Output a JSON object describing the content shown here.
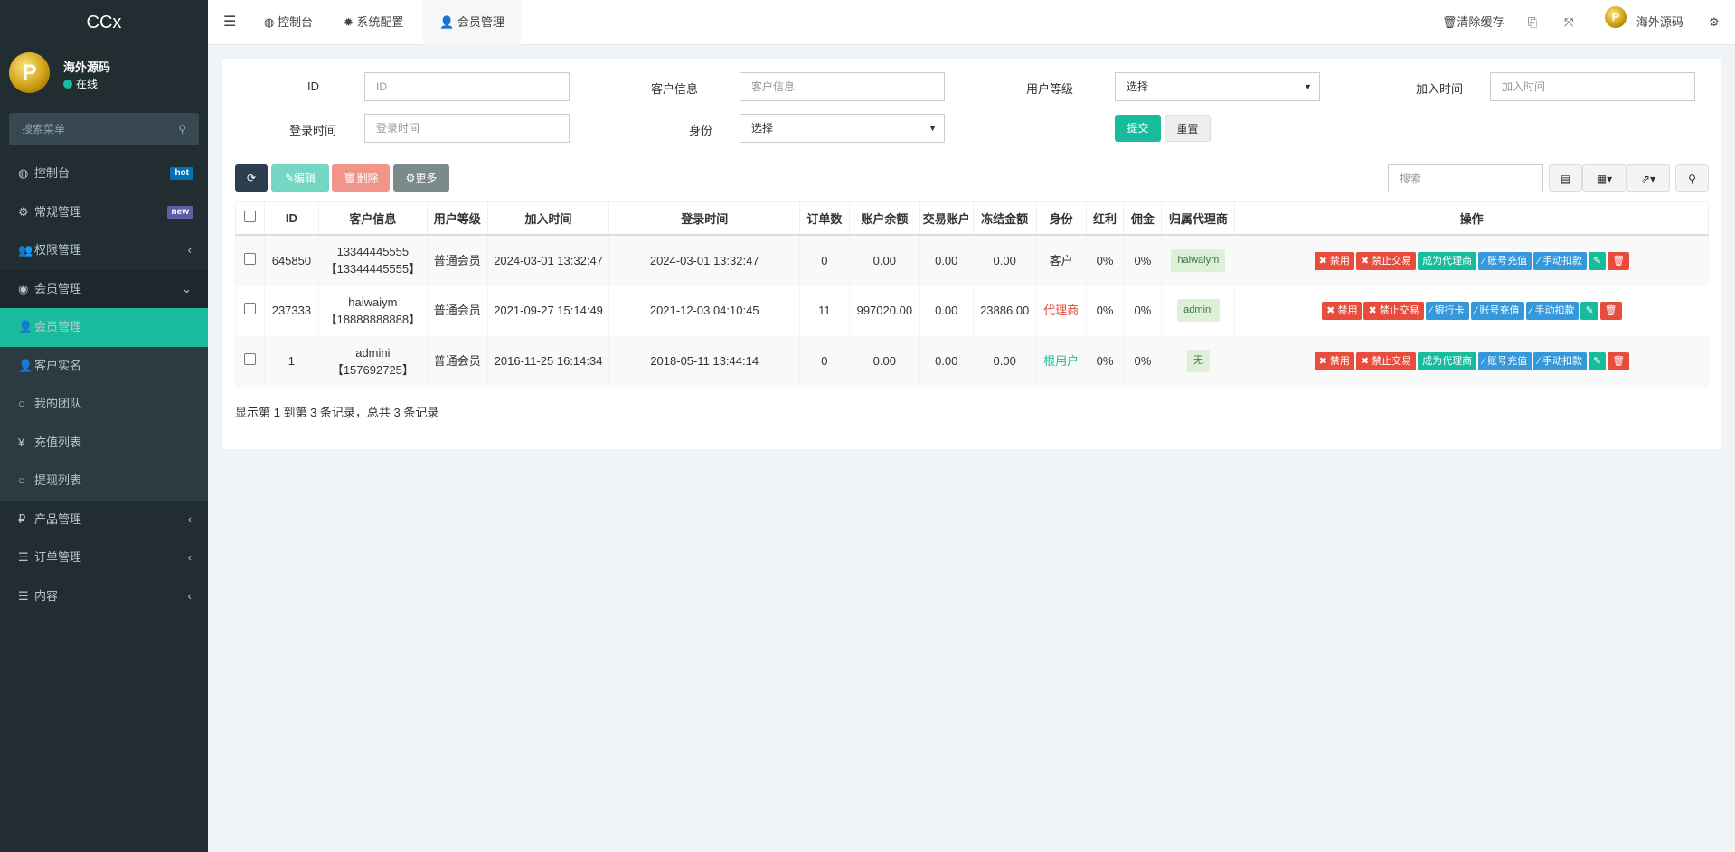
{
  "app": {
    "title": "CCx"
  },
  "user": {
    "name": "海外源码",
    "status": "在线",
    "avatar_letter": "P"
  },
  "sidebar": {
    "search_placeholder": "搜索菜单",
    "items": [
      {
        "label": "控制台",
        "icon": "dashboard-icon",
        "badge": "hot",
        "badge_color": "#0073b7"
      },
      {
        "label": "常规管理",
        "icon": "cogs-icon",
        "badge": "new",
        "badge_color": "#605ca8"
      },
      {
        "label": "权限管理",
        "icon": "group-icon"
      },
      {
        "label": "会员管理",
        "icon": "user-circle-icon",
        "open": true
      },
      {
        "label": "会员管理",
        "icon": "user-icon",
        "active": true
      },
      {
        "label": "客户实名",
        "icon": "user-icon"
      },
      {
        "label": "我的团队",
        "icon": "circle-icon"
      },
      {
        "label": "充值列表",
        "icon": "yen-icon"
      },
      {
        "label": "提现列表",
        "icon": "circle-icon"
      },
      {
        "label": "产品管理",
        "icon": "ruble-icon"
      },
      {
        "label": "订单管理",
        "icon": "list-icon"
      },
      {
        "label": "内容",
        "icon": "list-icon"
      }
    ]
  },
  "header": {
    "tabs": [
      "控制台",
      "系统配置",
      "会员管理"
    ],
    "clear_cache": "清除缓存",
    "username": "海外源码"
  },
  "filters": {
    "id_label": "ID",
    "id_placeholder": "ID",
    "customer_label": "客户信息",
    "customer_placeholder": "客户信息",
    "level_label": "用户等级",
    "level_value": "选择",
    "join_label": "加入时间",
    "join_placeholder": "加入时间",
    "login_label": "登录时间",
    "login_placeholder": "登录时间",
    "identity_label": "身份",
    "identity_value": "选择",
    "submit": "提交",
    "reset": "重置"
  },
  "toolbar": {
    "edit": "编辑",
    "delete": "删除",
    "more": "更多",
    "search_placeholder": "搜索"
  },
  "table": {
    "headers": [
      "ID",
      "客户信息",
      "用户等级",
      "加入时间",
      "登录时间",
      "订单数",
      "账户余额",
      "交易账户",
      "冻结金额",
      "身份",
      "红利",
      "佣金",
      "归属代理商",
      "操作"
    ],
    "rows": [
      {
        "id": "645850",
        "name": "13344445555",
        "phone": "【13344445555】",
        "level": "普通会员",
        "join": "2024-03-01 13:32:47",
        "login": "2024-03-01 13:32:47",
        "orders": "0",
        "balance": "0.00",
        "trade": "0.00",
        "frozen": "0.00",
        "identity": "客户",
        "identity_color": "#333333",
        "bonus": "0%",
        "commission": "0%",
        "agent": "haiwaiym",
        "actions": [
          "禁用",
          "禁止交易",
          "成为代理商",
          "账号充值",
          "手动扣款"
        ]
      },
      {
        "id": "237333",
        "name": "haiwaiym",
        "phone": "【18888888888】",
        "level": "普通会员",
        "join": "2021-09-27 15:14:49",
        "login": "2021-12-03 04:10:45",
        "orders": "11",
        "balance": "997020.00",
        "trade": "0.00",
        "frozen": "23886.00",
        "identity": "代理商",
        "identity_color": "#e74c3c",
        "bonus": "0%",
        "commission": "0%",
        "agent": "admini",
        "actions": [
          "禁用",
          "禁止交易",
          "银行卡",
          "账号充值",
          "手动扣款"
        ]
      },
      {
        "id": "1",
        "name": "admini",
        "phone": "【157692725】",
        "level": "普通会员",
        "join": "2016-11-25 16:14:34",
        "login": "2018-05-11 13:44:14",
        "orders": "0",
        "balance": "0.00",
        "trade": "0.00",
        "frozen": "0.00",
        "identity": "根用户",
        "identity_color": "#18bc9c",
        "bonus": "0%",
        "commission": "0%",
        "agent": "无",
        "actions": [
          "禁用",
          "禁止交易",
          "成为代理商",
          "账号充值",
          "手动扣款"
        ]
      }
    ]
  },
  "pagination": {
    "summary": "显示第 1 到第 3 条记录，总共 3 条记录"
  }
}
